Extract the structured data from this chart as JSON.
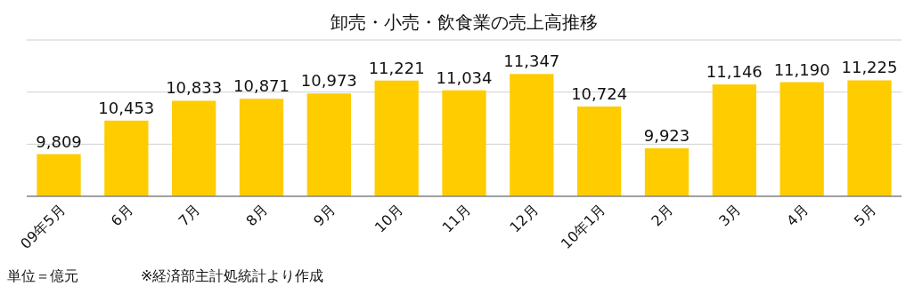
{
  "chart_data": {
    "type": "bar",
    "title": "卸売・小売・飲食業の売上高推移",
    "categories": [
      "09年5月",
      "6月",
      "7月",
      "8月",
      "9月",
      "10月",
      "11月",
      "12月",
      "10年1月",
      "2月",
      "3月",
      "4月",
      "5月"
    ],
    "values": [
      9809,
      10453,
      10833,
      10871,
      10973,
      11221,
      11034,
      11347,
      10724,
      9923,
      11146,
      11190,
      11225
    ],
    "color": "#ffcc00",
    "ylim": [
      9000,
      12000
    ],
    "yticks": [
      {
        "value": 9000,
        "label": null
      },
      {
        "value": 10000,
        "label": null
      },
      {
        "value": 11000,
        "label": null
      },
      {
        "value": 12000,
        "label": null
      }
    ],
    "value_labels": [
      "9,809",
      "10,453",
      "10,833",
      "10,871",
      "10,973",
      "11,221",
      "11,034",
      "11,347",
      "10,724",
      "9,923",
      "11,146",
      "11,190",
      "11,225"
    ],
    "tick_labels": "x",
    "grid": "y",
    "annotations": [
      "単位＝億元",
      "※経済部主計処統計より作成"
    ]
  }
}
